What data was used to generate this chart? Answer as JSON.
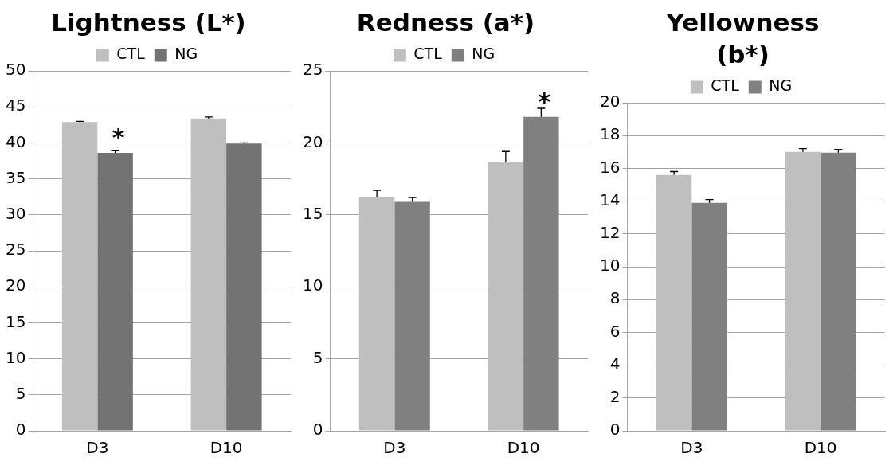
{
  "chart_data": [
    {
      "type": "bar",
      "title": "Lightness (L*)",
      "categories": [
        "D3",
        "D10"
      ],
      "series": [
        {
          "name": "CTL",
          "color": "#bfbfbf",
          "values": [
            42.9,
            43.4
          ],
          "errors": [
            0.1,
            0.2
          ]
        },
        {
          "name": "NG",
          "color": "#737373",
          "values": [
            38.6,
            39.9
          ],
          "errors": [
            0.3,
            0.1
          ]
        }
      ],
      "ylim": [
        0,
        50
      ],
      "yticks": [
        0,
        5,
        10,
        15,
        20,
        25,
        30,
        35,
        40,
        45,
        50
      ],
      "grid": "y",
      "legend": "top",
      "annotations": [
        {
          "text": "*",
          "x": "D3",
          "y": 38.6
        }
      ]
    },
    {
      "type": "bar",
      "title": "Redness (a*)",
      "categories": [
        "D3",
        "D10"
      ],
      "series": [
        {
          "name": "CTL",
          "color": "#bfbfbf",
          "values": [
            16.2,
            18.7
          ],
          "errors": [
            0.5,
            0.7
          ]
        },
        {
          "name": "NG",
          "color": "#808080",
          "values": [
            15.9,
            21.8
          ],
          "errors": [
            0.3,
            0.6
          ]
        }
      ],
      "ylim": [
        0,
        25
      ],
      "yticks": [
        0,
        5,
        10,
        15,
        20,
        25
      ],
      "grid": "y",
      "legend": "top",
      "annotations": [
        {
          "text": "*",
          "x": "D10",
          "y": 21.8
        }
      ]
    },
    {
      "type": "bar",
      "title": "Yellowness (b*)",
      "categories": [
        "D3",
        "D10"
      ],
      "series": [
        {
          "name": "CTL",
          "color": "#bfbfbf",
          "values": [
            15.6,
            17.0
          ],
          "errors": [
            0.2,
            0.2
          ]
        },
        {
          "name": "NG",
          "color": "#808080",
          "values": [
            13.9,
            16.95
          ],
          "errors": [
            0.2,
            0.2
          ]
        }
      ],
      "ylim": [
        0,
        20
      ],
      "yticks": [
        0,
        2,
        4,
        6,
        8,
        10,
        12,
        14,
        16,
        18,
        20
      ],
      "grid": "y",
      "legend": "top"
    }
  ]
}
